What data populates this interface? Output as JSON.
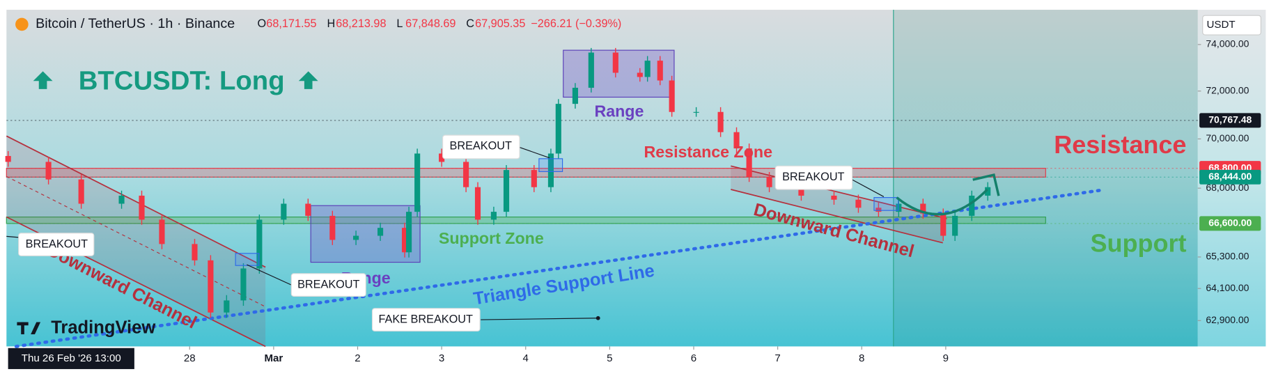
{
  "chart_data": {
    "type": "candlestick",
    "header": {
      "symbol": "Bitcoin / TetherUS · 1h · Binance",
      "ohlc_labels": [
        "O",
        "H",
        "L",
        "C"
      ],
      "ohlc_values": [
        "68,171.55",
        "68,213.98",
        "67,848.69",
        "67,905.35"
      ],
      "change": "−266.21 (−0.39%)"
    },
    "currency": "USDT",
    "crosshair_label": "Thu 26 Feb '26 13:00",
    "logo": "TradingView",
    "annotations": [
      "BTCUSDT: Long",
      "Range",
      "Range",
      "Support Zone",
      "Resistance Zone",
      "Triangle Support Line",
      "Downward Channel",
      "Downward Channel",
      "Resistance",
      "Support",
      "BREAKOUT",
      "BREAKOUT",
      "BREAKOUT",
      "BREAKOUT",
      "FAKE BREAKOUT"
    ],
    "x": [
      25.84,
      26.32,
      26.71,
      27.19,
      27.43,
      27.67,
      28.06,
      28.25,
      28.44,
      28.64,
      28.83,
      29.12,
      29.41,
      29.7,
      29.98,
      30.27,
      30.56,
      30.61,
      30.71,
      31.0,
      31.29,
      31.43,
      31.62,
      31.77,
      32.1,
      32.3,
      32.39,
      32.59,
      32.78,
      33.07,
      33.36,
      33.45,
      33.6,
      33.74,
      34.03,
      34.32,
      34.51,
      34.66,
      34.9,
      35.28,
      35.67,
      35.96,
      36.2,
      36.44,
      36.73,
      36.97,
      37.11,
      37.31,
      37.5
    ],
    "open": [
      69300,
      69060,
      68350,
      67380,
      67700,
      66750,
      65800,
      65170,
      63200,
      63650,
      64860,
      66750,
      67380,
      66900,
      65960,
      66120,
      66430,
      65480,
      67060,
      69400,
      69060,
      68040,
      66750,
      67060,
      68730,
      68040,
      69400,
      71460,
      72140,
      73650,
      72780,
      72600,
      73300,
      72450,
      71120,
      71120,
      70280,
      69610,
      68450,
      68040,
      67700,
      67540,
      67220,
      67060,
      67380,
      66990,
      66120,
      66900,
      67700
    ],
    "high": [
      69500,
      69260,
      68550,
      67900,
      67900,
      66950,
      66000,
      65370,
      63850,
      65060,
      66950,
      67580,
      67580,
      67100,
      66320,
      66630,
      66630,
      67260,
      69600,
      69600,
      69260,
      68240,
      67260,
      68930,
      68930,
      69600,
      71660,
      72340,
      73850,
      73850,
      72980,
      73500,
      73500,
      72650,
      71320,
      71320,
      70480,
      69810,
      68650,
      68240,
      67900,
      67740,
      67420,
      67580,
      67580,
      67190,
      67100,
      67900,
      68240
    ],
    "low": [
      68860,
      68150,
      67180,
      67180,
      66550,
      65600,
      64970,
      63000,
      63000,
      63450,
      64660,
      66550,
      66700,
      65760,
      65760,
      65920,
      65280,
      65280,
      66860,
      68860,
      67840,
      66550,
      66550,
      66860,
      67840,
      67840,
      69200,
      71260,
      71940,
      72580,
      72400,
      72400,
      72250,
      70920,
      70920,
      70080,
      69410,
      68250,
      67840,
      67500,
      67340,
      67020,
      66860,
      66860,
      66790,
      65920,
      65920,
      66700,
      67500
    ],
    "close": [
      69060,
      68350,
      67380,
      67700,
      66750,
      65800,
      65170,
      63200,
      63650,
      64860,
      66750,
      67380,
      66900,
      65960,
      66120,
      66430,
      65480,
      67060,
      69400,
      69060,
      68040,
      66750,
      67060,
      68730,
      68040,
      69400,
      71460,
      72140,
      73650,
      72780,
      72600,
      73300,
      72450,
      71120,
      71120,
      70280,
      69610,
      68450,
      68040,
      67700,
      67540,
      67220,
      67060,
      67380,
      66990,
      66120,
      66900,
      67700,
      68040
    ],
    "up_color": "#089981",
    "down_color": "#f23645",
    "xlim": [
      25.82,
      40.0
    ],
    "xticks": [
      28,
      {
        "value": 29,
        "label": "Mar"
      },
      {
        "value": 30,
        "label": "2"
      },
      {
        "value": 31,
        "label": "3"
      },
      {
        "value": 32,
        "label": "4"
      },
      {
        "value": 33,
        "label": "5"
      },
      {
        "value": 34,
        "label": "6"
      },
      {
        "value": 35,
        "label": "7"
      },
      {
        "value": 36,
        "label": "8"
      },
      {
        "value": 37,
        "label": "9"
      }
    ],
    "ylim": [
      61950,
      75530
    ],
    "log": true,
    "yticks": [
      {
        "value": 74000,
        "label": "74,000.00"
      },
      {
        "value": 72000,
        "label": "72,000.00"
      },
      {
        "value": 70000,
        "label": "70,000.00"
      },
      {
        "value": 68000,
        "label": "68,000.00"
      },
      {
        "value": 65300,
        "label": "65,300.00"
      },
      {
        "value": 64100,
        "label": "64,100.00"
      },
      {
        "value": 62900,
        "label": "62,900.00"
      }
    ],
    "price_tags": [
      {
        "value": 70767.48,
        "label": "70,767.48",
        "color": "#131722"
      },
      {
        "value": 68800,
        "label": "68,800.00",
        "color": "#f23645"
      },
      {
        "value": 68444,
        "label": "68,444.00",
        "color": "#089981"
      },
      {
        "value": 66600,
        "label": "66,600.00",
        "color": "#4caf50"
      }
    ]
  }
}
